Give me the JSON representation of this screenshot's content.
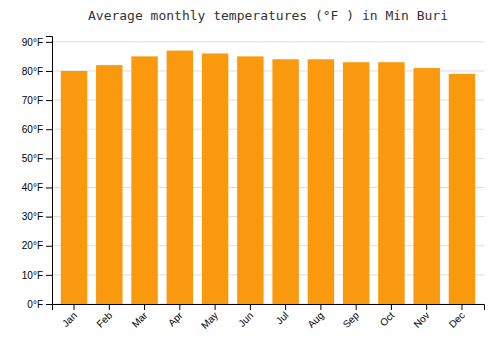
{
  "chart_data": {
    "type": "bar",
    "title": "Average monthly temperatures (°F ) in Min Buri",
    "categories": [
      "Jan",
      "Feb",
      "Mar",
      "Apr",
      "May",
      "Jun",
      "Jul",
      "Aug",
      "Sep",
      "Oct",
      "Nov",
      "Dec"
    ],
    "values": [
      80,
      82,
      85,
      87,
      86,
      85,
      84,
      84,
      83,
      83,
      81,
      79
    ],
    "color": "#FA990D",
    "ylim": [
      0,
      92
    ],
    "yticks": [
      {
        "value": 0,
        "label": "0°F"
      },
      {
        "value": 10,
        "label": "10°F"
      },
      {
        "value": 20,
        "label": "20°F"
      },
      {
        "value": 30,
        "label": "30°F"
      },
      {
        "value": 40,
        "label": "40°F"
      },
      {
        "value": 50,
        "label": "50°F"
      },
      {
        "value": 60,
        "label": "60°F"
      },
      {
        "value": 70,
        "label": "70°F"
      },
      {
        "value": 80,
        "label": "80°F"
      },
      {
        "value": 90,
        "label": "90°F"
      }
    ],
    "grid": true
  }
}
